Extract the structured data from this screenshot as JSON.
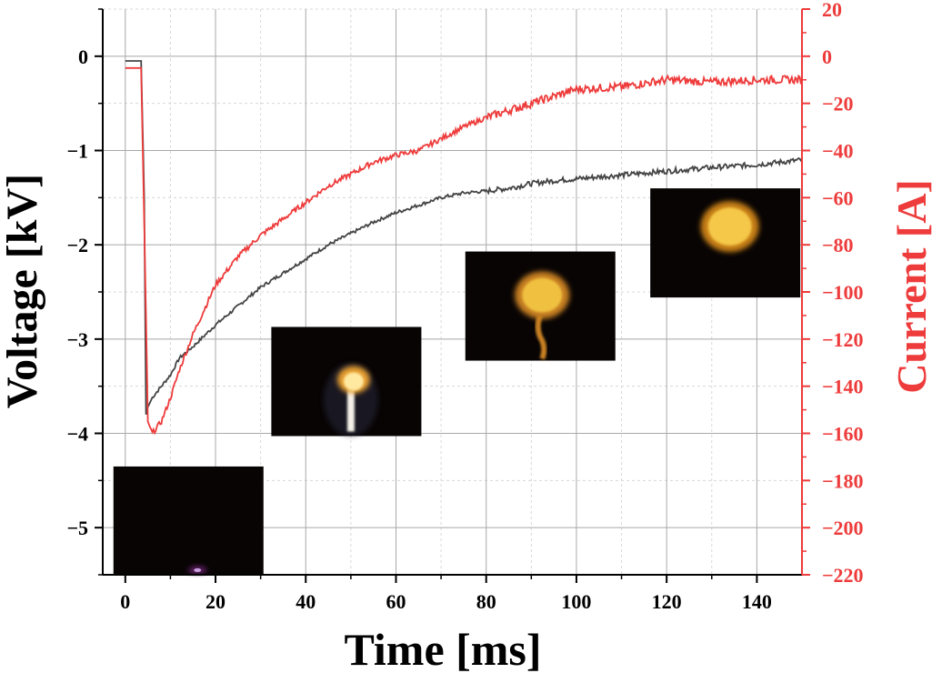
{
  "chart_data": {
    "type": "line",
    "title": "",
    "xlabel": "Time [ms]",
    "ylabel_left": "Voltage [kV]",
    "ylabel_right": "Current [A]",
    "xlim": [
      -5,
      150
    ],
    "ylim_left": [
      -5.5,
      0.5
    ],
    "ylim_right": [
      -220,
      20
    ],
    "x_ticks": [
      0,
      20,
      40,
      60,
      80,
      100,
      120,
      140
    ],
    "y_ticks_left": [
      0,
      -1,
      -2,
      -3,
      -4,
      -5
    ],
    "y_ticks_right": [
      20,
      0,
      -20,
      -40,
      -60,
      -80,
      -100,
      -120,
      -140,
      -160,
      -180,
      -200,
      -220
    ],
    "grid": true,
    "colors": {
      "voltage": "#444444",
      "current": "#ee3b3b",
      "right_axis": "#ee3b3b"
    },
    "series": [
      {
        "axis": "left",
        "x": [
          0,
          3.5,
          4.2,
          4.6,
          5,
          6,
          8,
          10,
          12,
          15,
          20,
          25,
          30,
          35,
          40,
          45,
          50,
          55,
          60,
          65,
          70,
          75,
          80,
          85,
          90,
          95,
          100,
          110,
          120,
          130,
          140,
          150
        ],
        "y": [
          -0.05,
          -0.05,
          -1.5,
          -3.8,
          -3.72,
          -3.62,
          -3.5,
          -3.38,
          -3.2,
          -3.08,
          -2.85,
          -2.65,
          -2.45,
          -2.3,
          -2.15,
          -2.0,
          -1.88,
          -1.76,
          -1.66,
          -1.58,
          -1.5,
          -1.45,
          -1.43,
          -1.4,
          -1.35,
          -1.32,
          -1.3,
          -1.26,
          -1.22,
          -1.18,
          -1.15,
          -1.1
        ]
      },
      {
        "axis": "right",
        "x": [
          0,
          3.5,
          4.3,
          5,
          6,
          8,
          10,
          12,
          15,
          20,
          25,
          30,
          35,
          40,
          45,
          50,
          55,
          60,
          65,
          70,
          75,
          80,
          85,
          90,
          95,
          100,
          110,
          120,
          130,
          140,
          150
        ],
        "y": [
          -5,
          -5,
          -80,
          -155,
          -160,
          -155,
          -145,
          -133,
          -118,
          -97,
          -85,
          -76,
          -69,
          -62,
          -55,
          -50,
          -45,
          -42,
          -40,
          -35,
          -30,
          -26,
          -23,
          -20,
          -17,
          -14,
          -13,
          -10,
          -11,
          -10,
          -10
        ]
      }
    ]
  },
  "insets": [
    {
      "name": "frame-1",
      "t": 14,
      "y_kv": -4.93,
      "core": "#c9a0e0",
      "glow": "#6a2070",
      "shape": "spark"
    },
    {
      "name": "frame-2",
      "t": 49,
      "y_kv": -3.45,
      "core": "#ffe9a0",
      "glow": "#e8a030",
      "shape": "column"
    },
    {
      "name": "frame-3",
      "t": 92,
      "y_kv": -2.65,
      "core": "#f0c040",
      "glow": "#c88020",
      "shape": "mushroom"
    },
    {
      "name": "frame-4",
      "t": 133,
      "y_kv": -1.98,
      "core": "#f5c848",
      "glow": "#c88018",
      "shape": "blob"
    }
  ]
}
